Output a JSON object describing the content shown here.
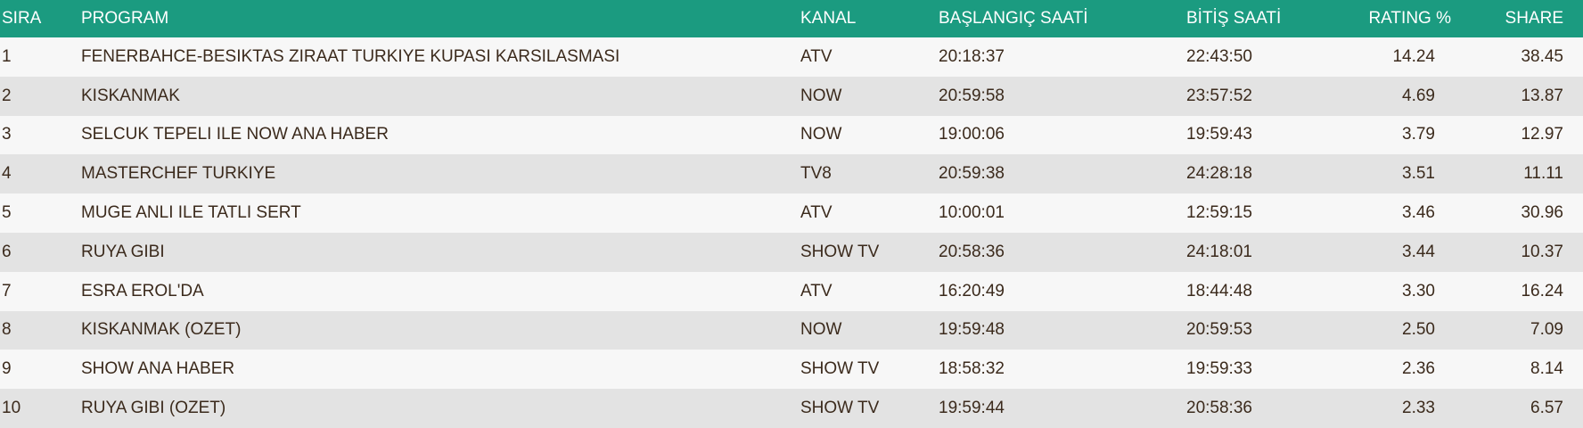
{
  "table": {
    "header": [
      "SIRA",
      "PROGRAM",
      "KANAL",
      "BAŞLANGIÇ SAATİ",
      "BİTİŞ SAATİ",
      "RATING %",
      "SHARE"
    ],
    "rows": [
      [
        "1",
        "FENERBAHCE-BESIKTAS ZIRAAT TURKIYE KUPASI KARSILASMASI",
        "ATV",
        "20:18:37",
        "22:43:50",
        "14.24",
        "38.45"
      ],
      [
        "2",
        "KISKANMAK",
        "NOW",
        "20:59:58",
        "23:57:52",
        "4.69",
        "13.87"
      ],
      [
        "3",
        "SELCUK TEPELI ILE NOW ANA HABER",
        "NOW",
        "19:00:06",
        "19:59:43",
        "3.79",
        "12.97"
      ],
      [
        "4",
        "MASTERCHEF TURKIYE",
        "TV8",
        "20:59:38",
        "24:28:18",
        "3.51",
        "11.11"
      ],
      [
        "5",
        "MUGE ANLI ILE TATLI SERT",
        "ATV",
        "10:00:01",
        "12:59:15",
        "3.46",
        "30.96"
      ],
      [
        "6",
        "RUYA GIBI",
        "SHOW TV",
        "20:58:36",
        "24:18:01",
        "3.44",
        "10.37"
      ],
      [
        "7",
        "ESRA EROL'DA",
        "ATV",
        "16:20:49",
        "18:44:48",
        "3.30",
        "16.24"
      ],
      [
        "8",
        "KISKANMAK (OZET)",
        "NOW",
        "19:59:48",
        "20:59:53",
        "2.50",
        "7.09"
      ],
      [
        "9",
        "SHOW ANA HABER",
        "SHOW TV",
        "18:58:32",
        "19:59:33",
        "2.36",
        "8.14"
      ],
      [
        "10",
        "RUYA GIBI (OZET)",
        "SHOW TV",
        "19:59:44",
        "20:58:36",
        "2.33",
        "6.57"
      ]
    ]
  }
}
